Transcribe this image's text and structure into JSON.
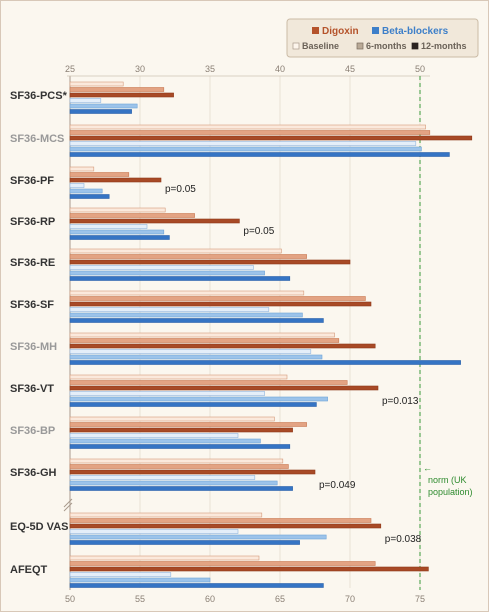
{
  "chart_data": {
    "type": "bar",
    "orientation": "horizontal",
    "categories": [
      "SF36-PCS*",
      "SF36-MCS",
      "SF36-PF",
      "SF36-RP",
      "SF36-RE",
      "SF36-SF",
      "SF36-MH",
      "SF36-VT",
      "SF36-BP",
      "SF36-GH",
      "EQ-5D VAS",
      "AFEQT"
    ],
    "category_colors": [
      "#333333",
      "#999999",
      "#333333",
      "#333333",
      "#333333",
      "#333333",
      "#999999",
      "#333333",
      "#999999",
      "#333333",
      "#333333",
      "#333333"
    ],
    "top_axis": {
      "ticks": [
        "25",
        "30",
        "35",
        "40",
        "45",
        "50"
      ],
      "range": [
        25,
        50
      ]
    },
    "bottom_axis": {
      "ticks": [
        "50",
        "55",
        "60",
        "65",
        "70",
        "75"
      ],
      "range": [
        50,
        75
      ]
    },
    "legend": {
      "position": "top-right",
      "treatments": [
        {
          "name": "Digoxin",
          "color": "#b5532b"
        },
        {
          "name": "Beta-blockers",
          "color": "#3d7fc9"
        }
      ],
      "timepoints": [
        "Baseline",
        "6-months",
        "12-months"
      ]
    },
    "series": [
      {
        "name": "Digoxin",
        "timepoint": "Baseline",
        "values": [
          28.8,
          50.4,
          26.7,
          31.8,
          40.1,
          41.7,
          43.9,
          40.5,
          39.6,
          40.2,
          63.7,
          63.5
        ]
      },
      {
        "name": "Digoxin",
        "timepoint": "6-months",
        "values": [
          31.7,
          50.7,
          29.2,
          33.9,
          41.9,
          46.1,
          44.2,
          44.8,
          41.9,
          40.6,
          71.5,
          71.8
        ]
      },
      {
        "name": "Digoxin",
        "timepoint": "12-months",
        "values": [
          32.4,
          53.7,
          31.5,
          37.1,
          45.0,
          46.5,
          46.8,
          47.0,
          40.9,
          42.5,
          72.2,
          75.6
        ]
      },
      {
        "name": "Beta-blockers",
        "timepoint": "Baseline",
        "values": [
          27.2,
          49.7,
          26.0,
          30.5,
          38.1,
          39.2,
          42.2,
          38.9,
          37.0,
          38.2,
          62.0,
          57.2
        ]
      },
      {
        "name": "Beta-blockers",
        "timepoint": "6-months",
        "values": [
          29.8,
          50.1,
          27.3,
          31.7,
          38.9,
          41.6,
          43.0,
          43.4,
          38.6,
          39.8,
          68.3,
          60.0
        ]
      },
      {
        "name": "Beta-blockers",
        "timepoint": "12-months",
        "values": [
          29.4,
          52.1,
          27.8,
          32.1,
          40.7,
          43.1,
          52.9,
          42.6,
          40.7,
          40.9,
          66.4,
          68.1
        ]
      }
    ],
    "annotations": [
      {
        "text": "p=0.05",
        "row": 2
      },
      {
        "text": "p=0.05",
        "row": 3
      },
      {
        "text": "p=0.013",
        "row": 7
      },
      {
        "text": "p=0.049",
        "row": 9
      },
      {
        "text": "p=0.038",
        "row": 10
      }
    ],
    "reference_line": {
      "value": 50,
      "label_lines": [
        "norm (UK",
        "population)"
      ]
    }
  }
}
